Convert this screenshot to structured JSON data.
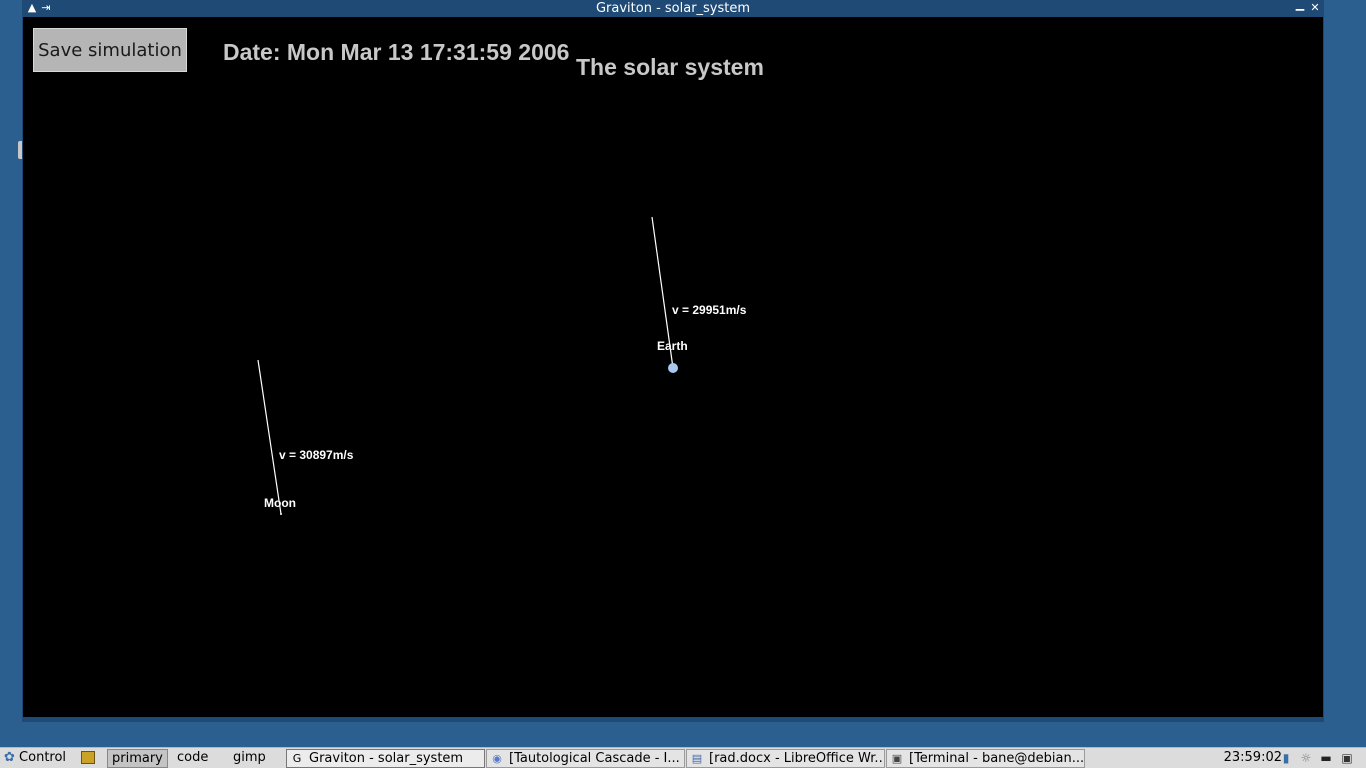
{
  "window": {
    "title": "Graviton - solar_system",
    "controls": {
      "shade": "▲",
      "pin": "⇥",
      "minimize": "▁",
      "close": "✕"
    }
  },
  "app": {
    "save_label": "Save simulation",
    "date_text": "Date: Mon Mar 13 17:31:59 2006",
    "sim_title": "The solar system",
    "bodies": [
      {
        "name": "Earth",
        "velocity_label": "v = 29951m/s",
        "color": "#a8c8f0"
      },
      {
        "name": "Moon",
        "velocity_label": "v = 30897m/s",
        "color": "#ffffff"
      }
    ]
  },
  "taskbar": {
    "menu_label": "Control",
    "workspaces": [
      "primary",
      "code",
      "gimp"
    ],
    "active_workspace": "primary",
    "tasks": [
      {
        "icon": "G",
        "label": "Graviton - solar_system"
      },
      {
        "icon": "◉",
        "label": "[Tautological Cascade - I..."
      },
      {
        "icon": "▤",
        "label": "[rad.docx - LibreOffice Wr..."
      },
      {
        "icon": "▣",
        "label": "[Terminal - bane@debian..."
      }
    ],
    "clock": "23:59:02"
  },
  "colors": {
    "desktop": "#2b5f8f",
    "frame": "#1f4a75",
    "canvas": "#000000",
    "taskbar": "#dcdcdc"
  }
}
